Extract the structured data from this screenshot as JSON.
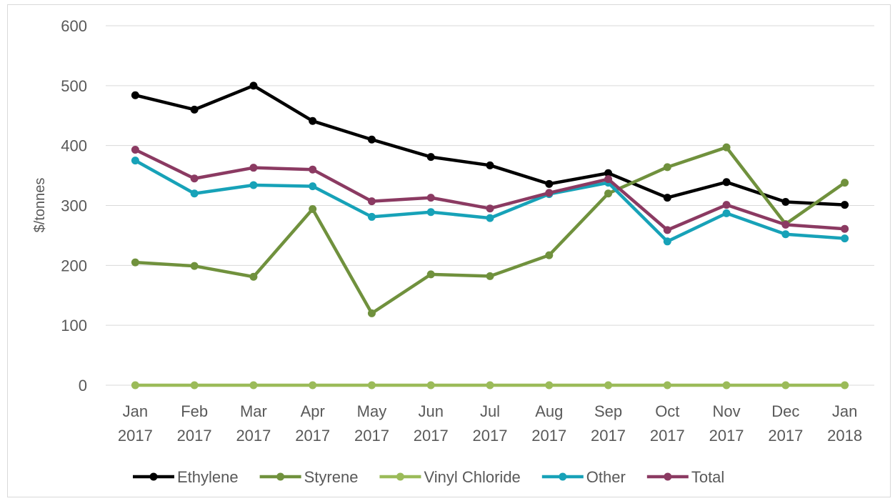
{
  "chart_data": {
    "type": "line",
    "title": "",
    "xlabel": "",
    "ylabel": "$/tonnes",
    "ylim": [
      0,
      600
    ],
    "yticks": [
      0,
      100,
      200,
      300,
      400,
      500,
      600
    ],
    "grid": true,
    "legend_position": "bottom",
    "categories": [
      [
        "Jan",
        "2017"
      ],
      [
        "Feb",
        "2017"
      ],
      [
        "Mar",
        "2017"
      ],
      [
        "Apr",
        "2017"
      ],
      [
        "May",
        "2017"
      ],
      [
        "Jun",
        "2017"
      ],
      [
        "Jul",
        "2017"
      ],
      [
        "Aug",
        "2017"
      ],
      [
        "Sep",
        "2017"
      ],
      [
        "Oct",
        "2017"
      ],
      [
        "Nov",
        "2017"
      ],
      [
        "Dec",
        "2017"
      ],
      [
        "Jan",
        "2018"
      ]
    ],
    "series": [
      {
        "name": "Ethylene",
        "color": "#000000",
        "values": [
          484,
          460,
          500,
          441,
          410,
          381,
          367,
          336,
          354,
          313,
          339,
          306,
          301
        ]
      },
      {
        "name": "Styrene",
        "color": "#70913d",
        "values": [
          205,
          199,
          181,
          294,
          120,
          185,
          182,
          217,
          320,
          364,
          397,
          269,
          338
        ]
      },
      {
        "name": "Vinyl Chloride",
        "color": "#9bbb59",
        "values": [
          0,
          0,
          0,
          0,
          0,
          0,
          0,
          0,
          0,
          0,
          0,
          0,
          0
        ]
      },
      {
        "name": "Other",
        "color": "#17a2b8",
        "values": [
          375,
          320,
          334,
          332,
          281,
          289,
          279,
          319,
          338,
          240,
          287,
          252,
          245
        ]
      },
      {
        "name": "Total",
        "color": "#8b3a62",
        "values": [
          393,
          345,
          363,
          360,
          307,
          313,
          295,
          321,
          344,
          259,
          301,
          268,
          261
        ]
      }
    ]
  }
}
